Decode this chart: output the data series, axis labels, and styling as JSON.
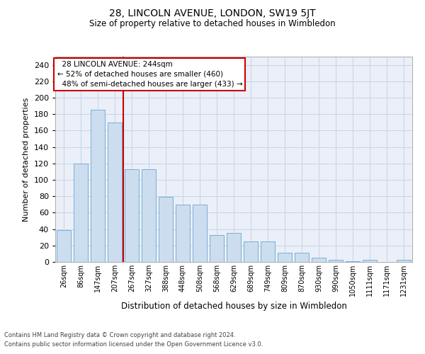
{
  "title": "28, LINCOLN AVENUE, LONDON, SW19 5JT",
  "subtitle": "Size of property relative to detached houses in Wimbledon",
  "xlabel": "Distribution of detached houses by size in Wimbledon",
  "ylabel": "Number of detached properties",
  "property_label": "28 LINCOLN AVENUE: 244sqm",
  "pct_smaller": "52% of detached houses are smaller (460)",
  "pct_larger": "48% of semi-detached houses are larger (433)",
  "categories": [
    "26sqm",
    "86sqm",
    "147sqm",
    "207sqm",
    "267sqm",
    "327sqm",
    "388sqm",
    "448sqm",
    "508sqm",
    "568sqm",
    "629sqm",
    "689sqm",
    "749sqm",
    "809sqm",
    "870sqm",
    "930sqm",
    "990sqm",
    "1050sqm",
    "1111sqm",
    "1171sqm",
    "1231sqm"
  ],
  "values": [
    39,
    120,
    185,
    170,
    113,
    113,
    79,
    70,
    70,
    33,
    35,
    25,
    25,
    11,
    11,
    5,
    3,
    1,
    3,
    0,
    3
  ],
  "bar_color": "#ccddf0",
  "bar_edge_color": "#7aafd4",
  "redline_x": 3.5,
  "ylim": [
    0,
    250
  ],
  "yticks": [
    0,
    20,
    40,
    60,
    80,
    100,
    120,
    140,
    160,
    180,
    200,
    220,
    240
  ],
  "grid_color": "#c8d4e8",
  "background_color": "#eaeff8",
  "annotation_box_color": "#ffffff",
  "annotation_box_edge": "#cc0000",
  "redline_color": "#cc0000",
  "footer_line1": "Contains HM Land Registry data © Crown copyright and database right 2024.",
  "footer_line2": "Contains public sector information licensed under the Open Government Licence v3.0."
}
